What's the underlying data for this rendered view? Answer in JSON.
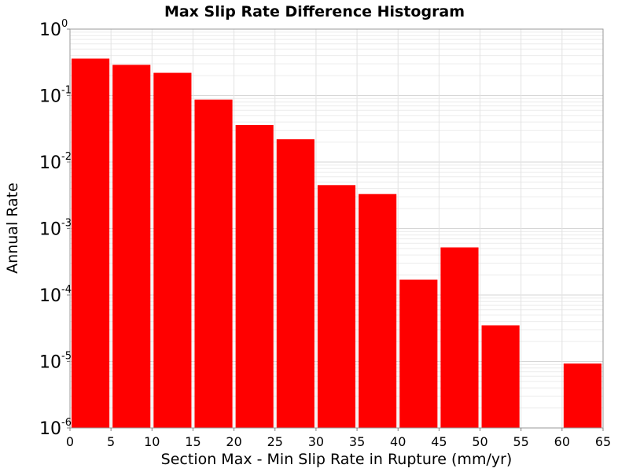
{
  "chart_data": {
    "type": "bar",
    "title": "Max Slip Rate Difference Histogram",
    "xlabel": "Section Max - Min Slip Rate in Rupture (mm/yr)",
    "ylabel": "Annual Rate",
    "xlim": [
      0,
      65
    ],
    "ylim": [
      1e-06,
      1
    ],
    "yscale": "log",
    "grid": true,
    "bar_color": "#ff0000",
    "x_ticks": [
      "0",
      "5",
      "10",
      "15",
      "20",
      "25",
      "30",
      "35",
      "40",
      "45",
      "50",
      "55",
      "60",
      "65"
    ],
    "y_ticks": [
      {
        "base": "10",
        "exp": "0"
      },
      {
        "base": "10",
        "exp": "-1"
      },
      {
        "base": "10",
        "exp": "-2"
      },
      {
        "base": "10",
        "exp": "-3"
      },
      {
        "base": "10",
        "exp": "-4"
      },
      {
        "base": "10",
        "exp": "-5"
      },
      {
        "base": "10",
        "exp": "-6"
      }
    ],
    "bins": [
      {
        "x0": 0,
        "x1": 5,
        "value": 0.36
      },
      {
        "x0": 5,
        "x1": 10,
        "value": 0.29
      },
      {
        "x0": 10,
        "x1": 15,
        "value": 0.22
      },
      {
        "x0": 15,
        "x1": 20,
        "value": 0.087
      },
      {
        "x0": 20,
        "x1": 25,
        "value": 0.036
      },
      {
        "x0": 25,
        "x1": 30,
        "value": 0.022
      },
      {
        "x0": 30,
        "x1": 35,
        "value": 0.0045
      },
      {
        "x0": 35,
        "x1": 40,
        "value": 0.0033
      },
      {
        "x0": 40,
        "x1": 45,
        "value": 0.00017
      },
      {
        "x0": 45,
        "x1": 50,
        "value": 0.00052
      },
      {
        "x0": 50,
        "x1": 55,
        "value": 3.5e-05
      },
      {
        "x0": 55,
        "x1": 60,
        "value": 0
      },
      {
        "x0": 60,
        "x1": 65,
        "value": 9.3e-06
      }
    ]
  }
}
